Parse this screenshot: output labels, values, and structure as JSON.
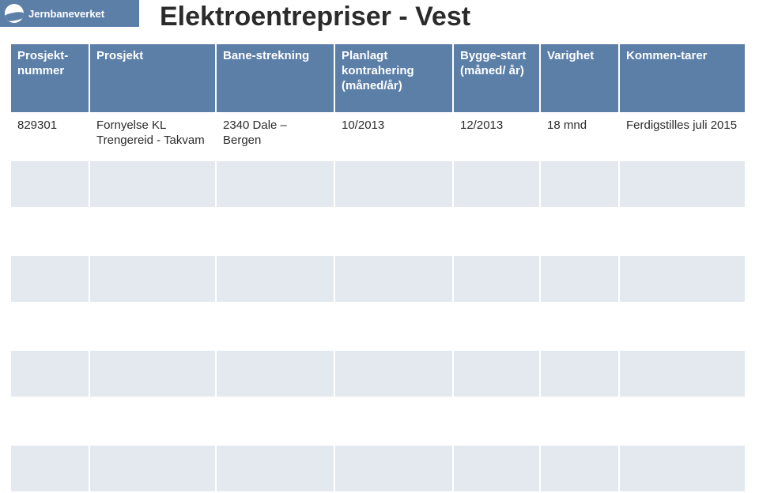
{
  "brand": {
    "name": "Jernbaneverket"
  },
  "title": "Elektroentrepriser - Vest",
  "table": {
    "headers": {
      "col0": "Prosjekt-nummer",
      "col1": "Prosjekt",
      "col2": "Bane-strekning",
      "col3": "Planlagt kontrahering (måned/år)",
      "col4": "Bygge-start (måned/ år)",
      "col5": "Varighet",
      "col6": "Kommen-tarer"
    },
    "rows": [
      {
        "num": "829301",
        "prosjekt": "Fornyelse KL Trengereid - Takvam",
        "bane": "2340 Dale – Bergen",
        "plan": "10/2013",
        "bygge": "12/2013",
        "varighet": "18 mnd",
        "kommentar": "Ferdigstilles juli 2015"
      },
      {
        "num": "",
        "prosjekt": "",
        "bane": "",
        "plan": "",
        "bygge": "",
        "varighet": "",
        "kommentar": ""
      },
      {
        "num": "",
        "prosjekt": "",
        "bane": "",
        "plan": "",
        "bygge": "",
        "varighet": "",
        "kommentar": ""
      },
      {
        "num": "",
        "prosjekt": "",
        "bane": "",
        "plan": "",
        "bygge": "",
        "varighet": "",
        "kommentar": ""
      },
      {
        "num": "",
        "prosjekt": "",
        "bane": "",
        "plan": "",
        "bygge": "",
        "varighet": "",
        "kommentar": ""
      },
      {
        "num": "",
        "prosjekt": "",
        "bane": "",
        "plan": "",
        "bygge": "",
        "varighet": "",
        "kommentar": ""
      },
      {
        "num": "",
        "prosjekt": "",
        "bane": "",
        "plan": "",
        "bygge": "",
        "varighet": "",
        "kommentar": ""
      },
      {
        "num": "",
        "prosjekt": "",
        "bane": "",
        "plan": "",
        "bygge": "",
        "varighet": "",
        "kommentar": ""
      }
    ]
  },
  "colors": {
    "header_bg": "#5c7fa8",
    "row_alt_bg": "#e4e9f0",
    "text": "#2b2b2b",
    "header_text": "#ffffff"
  }
}
